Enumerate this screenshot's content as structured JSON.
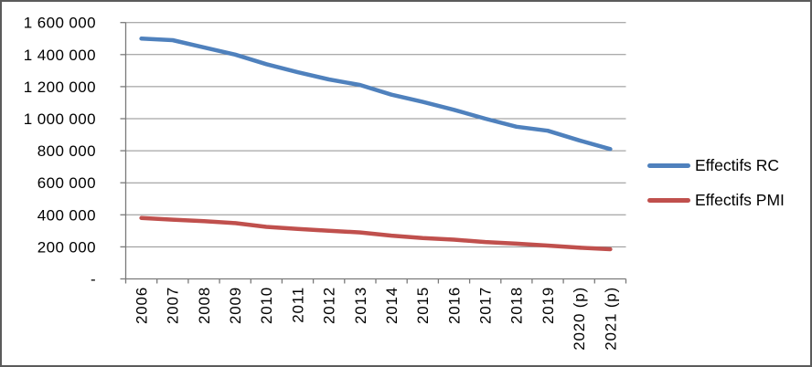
{
  "chart_data": {
    "type": "line",
    "title": "",
    "xlabel": "",
    "ylabel": "",
    "categories": [
      "2006",
      "2007",
      "2008",
      "2009",
      "2010",
      "2011",
      "2012",
      "2013",
      "2014",
      "2015",
      "2016",
      "2017",
      "2018",
      "2019",
      "2020 (p)",
      "2021 (p)"
    ],
    "series": [
      {
        "name": "Effectifs RC",
        "color": "#4F81BD",
        "values": [
          1500000,
          1490000,
          1445000,
          1400000,
          1340000,
          1290000,
          1245000,
          1210000,
          1150000,
          1105000,
          1055000,
          1000000,
          950000,
          925000,
          865000,
          810000
        ]
      },
      {
        "name": "Effectifs PMI",
        "color": "#C0504D",
        "values": [
          380000,
          370000,
          360000,
          348000,
          325000,
          312000,
          300000,
          290000,
          270000,
          255000,
          245000,
          230000,
          220000,
          208000,
          195000,
          185000
        ]
      }
    ],
    "ylim": [
      0,
      1600000
    ],
    "y_tick_step": 200000,
    "y_tick_labels": [
      "-",
      "200 000",
      "400 000",
      "600 000",
      "800 000",
      "1 000 000",
      "1 200 000",
      "1 400 000",
      "1 600 000"
    ],
    "grid": true,
    "legend_position": "right",
    "x_labels_rotated_degrees": 90
  }
}
